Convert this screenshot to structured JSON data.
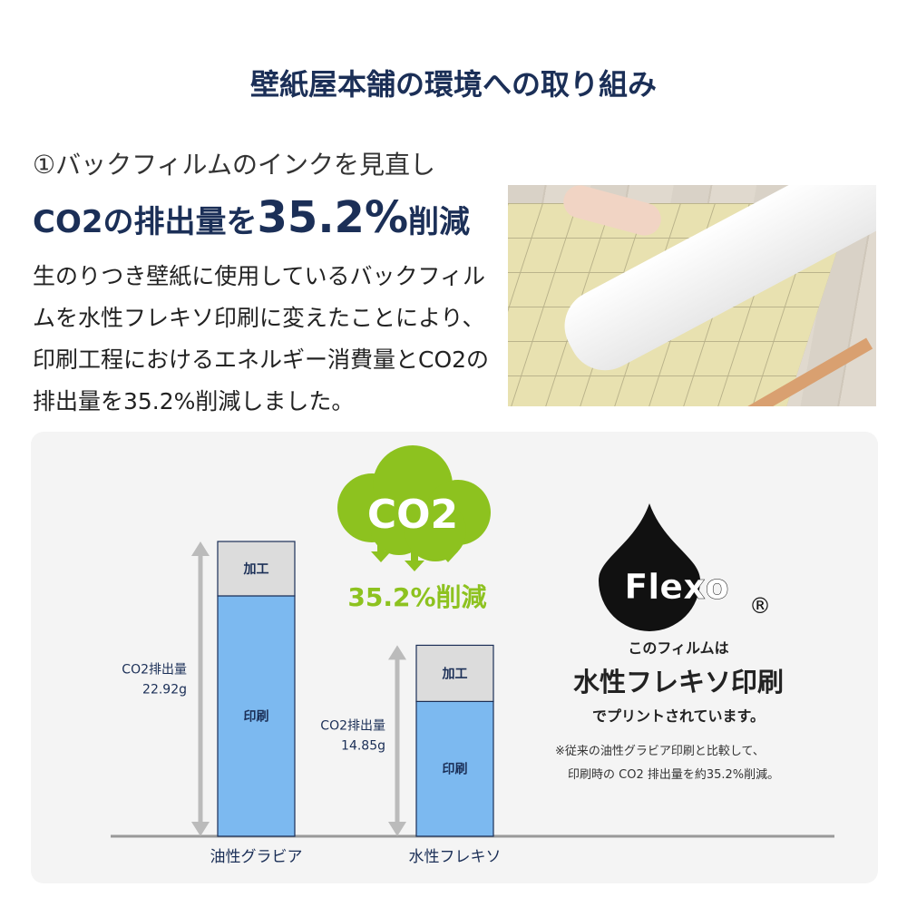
{
  "header": {
    "title": "壁紙屋本舗の環境への取り組み"
  },
  "intro": {
    "subtitle": "①バックフィルムのインクを見直し",
    "headline_pre": "CO2の排出量を",
    "headline_num": "35.2%",
    "headline_post": "削減",
    "description": "生のりつき壁紙に使用しているバックフィルムを水性フレキソ印刷に変えたことにより、印刷工程におけるエネルギー消費量とCO2の排出量を35.2%削減しました。"
  },
  "cloud": {
    "label": "CO2",
    "reduction": "35.2%削減",
    "color": "#8dc21f"
  },
  "flexo": {
    "logo": "Flexo",
    "registered": "®",
    "line1": "このフィルムは",
    "line2": "水性フレキソ印刷",
    "line3": "でプリントされています。",
    "note1": "※従来の油性グラビア印刷と比較して、",
    "note2": "印刷時の CO2 排出量を約35.2%削減。"
  },
  "chart_data": {
    "type": "bar",
    "stacked": true,
    "categories": [
      "油性グラビア",
      "水性フレキソ"
    ],
    "series": [
      {
        "name": "印刷",
        "values": [
          18.69,
          10.48
        ],
        "color": "#7cb9f0"
      },
      {
        "name": "加工",
        "values": [
          4.23,
          4.37
        ],
        "color": "#dcdcdc"
      }
    ],
    "totals": [
      22.92,
      14.85
    ],
    "total_labels": [
      [
        "CO2排出量",
        "22.92g"
      ],
      [
        "CO2排出量",
        "14.85g"
      ]
    ],
    "ylim": [
      0,
      22.92
    ],
    "grid": false
  }
}
